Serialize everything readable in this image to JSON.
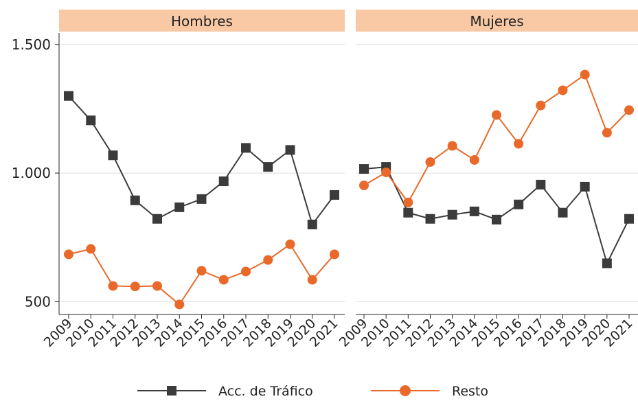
{
  "chart_data": [
    {
      "type": "line",
      "title": "Hombres",
      "categories": [
        "2009",
        "2010",
        "2011",
        "2012",
        "2013",
        "2014",
        "2015",
        "2016",
        "2017",
        "2018",
        "2019",
        "2020",
        "2021"
      ],
      "series": [
        {
          "name": "Acc. de Tráfico",
          "color": "#3b3b3b",
          "marker": "square",
          "values": [
            1300,
            1205,
            1069,
            894,
            822,
            867,
            899,
            968,
            1098,
            1024,
            1090,
            800,
            915
          ]
        },
        {
          "name": "Resto",
          "color": "#e8692a",
          "marker": "circle",
          "values": [
            684,
            705,
            561,
            559,
            561,
            489,
            620,
            585,
            617,
            662,
            723,
            585,
            684
          ]
        }
      ],
      "ylim": [
        450,
        1545
      ],
      "yticks": [
        {
          "value": 500,
          "label": "500"
        },
        {
          "value": 1000,
          "label": "1.000"
        },
        {
          "value": 1500,
          "label": "1.500"
        }
      ],
      "grid": true
    },
    {
      "type": "line",
      "title": "Mujeres",
      "categories": [
        "2009",
        "2010",
        "2011",
        "2012",
        "2013",
        "2014",
        "2015",
        "2016",
        "2017",
        "2018",
        "2019",
        "2020",
        "2021"
      ],
      "series": [
        {
          "name": "Acc. de Tráfico",
          "color": "#3b3b3b",
          "marker": "square",
          "values": [
            1016,
            1024,
            846,
            822,
            838,
            851,
            819,
            878,
            955,
            846,
            947,
            649,
            822
          ]
        },
        {
          "name": "Resto",
          "color": "#e8692a",
          "marker": "circle",
          "values": [
            952,
            1003,
            886,
            1043,
            1106,
            1051,
            1226,
            1114,
            1263,
            1322,
            1383,
            1157,
            1245
          ]
        }
      ],
      "ylim": [
        450,
        1545
      ],
      "yticks": [
        500,
        1000,
        1500
      ],
      "grid": true
    }
  ]
}
